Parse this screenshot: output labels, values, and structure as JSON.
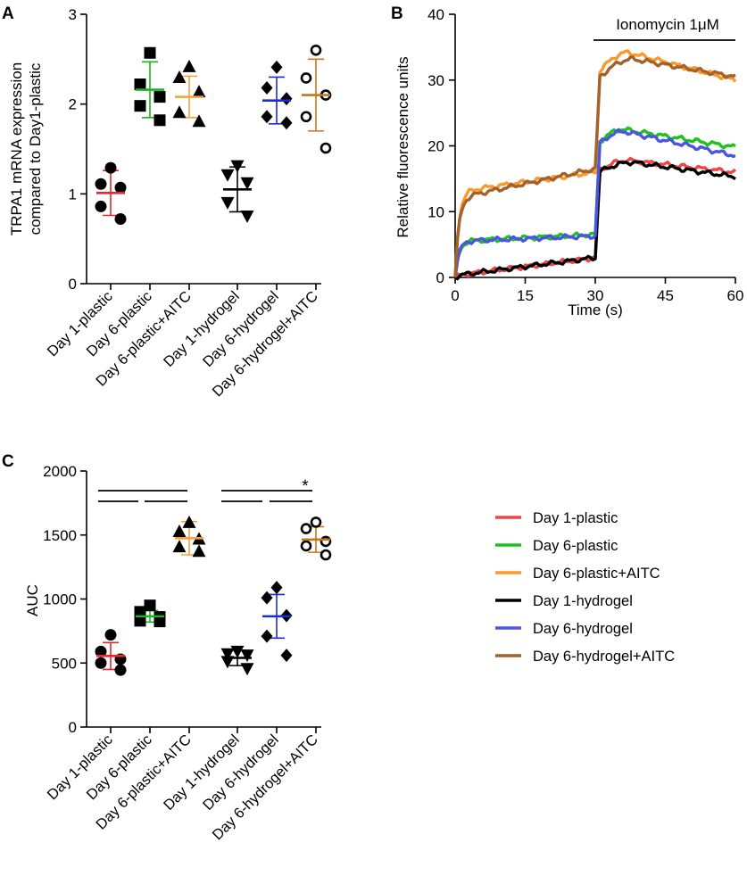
{
  "figure": {
    "panel_labels": [
      "A",
      "B",
      "C"
    ]
  },
  "chart_data": [
    {
      "panel": "A",
      "type": "scatter",
      "ylabel_lines": [
        "TRPA1 mRNA expression",
        "compared to Day1-plastic"
      ],
      "ylim": [
        0,
        3
      ],
      "yticks": [
        0,
        1,
        2,
        3
      ],
      "categories": [
        "Day 1-plastic",
        "Day 6-plastic",
        "Day 6-plastic+AITC",
        "Day 1-hydrogel",
        "Day 6-hydrogel",
        "Day 6-hydrogel+AITC"
      ],
      "groups": [
        {
          "name": "Day 1-plastic",
          "marker": "circle",
          "mean_color": "#e8262c",
          "mean": 1.01,
          "sd": 0.25,
          "points": [
            1.29,
            1.11,
            1.07,
            0.86,
            0.72
          ]
        },
        {
          "name": "Day 6-plastic",
          "marker": "square",
          "mean_color": "#1ab51a",
          "mean": 2.16,
          "sd": 0.31,
          "points": [
            2.57,
            2.22,
            2.08,
            1.98,
            1.82
          ]
        },
        {
          "name": "Day 6-plastic+AITC",
          "marker": "triangle-up",
          "mean_color": "#f5a23c",
          "mean": 2.08,
          "sd": 0.23,
          "points": [
            2.42,
            2.3,
            2.14,
            1.91,
            1.81
          ]
        },
        {
          "name": "Day 1-hydrogel",
          "marker": "triangle-down",
          "mean_color": "#000000",
          "mean": 1.05,
          "sd": 0.25,
          "points": [
            1.31,
            1.21,
            1.12,
            0.9,
            0.75
          ]
        },
        {
          "name": "Day 6-hydrogel",
          "marker": "diamond",
          "mean_color": "#1c2bd6",
          "mean": 2.04,
          "sd": 0.26,
          "points": [
            2.41,
            2.18,
            2.06,
            1.86,
            1.79
          ]
        },
        {
          "name": "Day 6-hydrogel+AITC",
          "marker": "open-circle",
          "mean_color": "#c8761e",
          "mean": 2.1,
          "sd": 0.4,
          "points": [
            2.6,
            2.29,
            2.1,
            1.86,
            1.51
          ]
        }
      ]
    },
    {
      "panel": "B",
      "type": "line",
      "xlabel": "Time (s)",
      "ylabel": "Relative fluorescence units",
      "xlim": [
        0,
        60
      ],
      "ylim": [
        0,
        40
      ],
      "xticks": [
        0,
        15,
        30,
        45,
        60
      ],
      "yticks": [
        0,
        10,
        20,
        30,
        40
      ],
      "annotation": {
        "text": "Ionomycin 1μM",
        "x_start": 30,
        "x_end": 60
      },
      "series": [
        {
          "name": "Day 1-plastic",
          "color": "#f04545",
          "baseline_start": 0.3,
          "baseline_end": 3.0,
          "peak": 17.8,
          "peak_t": 37,
          "end": 16.0
        },
        {
          "name": "Day 6-plastic",
          "color": "#1ec21e",
          "baseline_start": 5.5,
          "baseline_end": 6.5,
          "peak": 22.5,
          "peak_t": 36,
          "end": 19.8
        },
        {
          "name": "Day 6-plastic+AITC",
          "color": "#f99a2a",
          "baseline_start": 13.0,
          "baseline_end": 16.0,
          "peak": 34.2,
          "peak_t": 37,
          "end": 30.0
        },
        {
          "name": "Day 1-hydrogel",
          "color": "#000000",
          "baseline_start": 0.3,
          "baseline_end": 3.0,
          "peak": 17.5,
          "peak_t": 38,
          "end": 15.3
        },
        {
          "name": "Day 6-hydrogel",
          "color": "#4b55e0",
          "baseline_start": 5.5,
          "baseline_end": 6.3,
          "peak": 22.2,
          "peak_t": 36,
          "end": 18.5
        },
        {
          "name": "Day 6-hydrogel+AITC",
          "color": "#a3622a",
          "baseline_start": 12.0,
          "baseline_end": 16.5,
          "peak": 33.2,
          "peak_t": 38,
          "end": 30.5
        }
      ]
    },
    {
      "panel": "C",
      "type": "scatter",
      "ylabel": "AUC",
      "ylim": [
        0,
        2000
      ],
      "yticks": [
        0,
        500,
        1000,
        1500,
        2000
      ],
      "categories": [
        "Day 1-plastic",
        "Day 6-plastic",
        "Day 6-plastic+AITC",
        "Day 1-hydrogel",
        "Day 6-hydrogel",
        "Day 6-hydrogel+AITC"
      ],
      "significance": "*",
      "groups": [
        {
          "name": "Day 1-plastic",
          "marker": "circle",
          "mean_color": "#e8262c",
          "mean": 555,
          "sd": 105,
          "points": [
            720,
            590,
            530,
            500,
            445
          ]
        },
        {
          "name": "Day 6-plastic",
          "marker": "square",
          "mean_color": "#1ab51a",
          "mean": 865,
          "sd": 45,
          "points": [
            950,
            900,
            860,
            830,
            825
          ]
        },
        {
          "name": "Day 6-plastic+AITC",
          "marker": "triangle-up",
          "mean_color": "#f5a23c",
          "mean": 1475,
          "sd": 130,
          "points": [
            1600,
            1530,
            1470,
            1410,
            1375
          ]
        },
        {
          "name": "Day 1-hydrogel",
          "marker": "triangle-down",
          "mean_color": "#000000",
          "mean": 540,
          "sd": 60,
          "points": [
            590,
            570,
            560,
            510,
            455
          ]
        },
        {
          "name": "Day 6-hydrogel",
          "marker": "diamond",
          "mean_color": "#1c2bd6",
          "mean": 865,
          "sd": 170,
          "points": [
            1090,
            1010,
            870,
            710,
            560
          ]
        },
        {
          "name": "Day 6-hydrogel+AITC",
          "marker": "open-circle",
          "mean_color": "#c8761e",
          "mean": 1465,
          "sd": 100,
          "points": [
            1600,
            1550,
            1450,
            1415,
            1345
          ]
        }
      ]
    }
  ],
  "legend": {
    "items": [
      {
        "label": "Day 1-plastic",
        "color": "#f04545"
      },
      {
        "label": "Day 6-plastic",
        "color": "#1ec21e"
      },
      {
        "label": "Day 6-plastic+AITC",
        "color": "#f99a2a"
      },
      {
        "label": "Day 1-hydrogel",
        "color": "#000000"
      },
      {
        "label": "Day 6-hydrogel",
        "color": "#4b55e0"
      },
      {
        "label": "Day 6-hydrogel+AITC",
        "color": "#a3622a"
      }
    ]
  }
}
